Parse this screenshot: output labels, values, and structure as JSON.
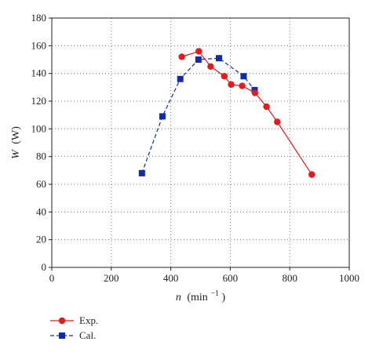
{
  "chart_data": {
    "type": "line",
    "title": "",
    "xlabel_var": "n",
    "xlabel_unit": "(min",
    "xlabel_exp": "−1",
    "xlabel_close": ")",
    "ylabel_var": "W",
    "ylabel_unit": "(W)",
    "xlim": [
      0,
      1000
    ],
    "ylim": [
      0,
      180
    ],
    "xticks": [
      0,
      200,
      400,
      600,
      800,
      1000
    ],
    "yticks": [
      0,
      20,
      40,
      60,
      80,
      100,
      120,
      140,
      160,
      180
    ],
    "grid": true,
    "legend_position": "bottom-left",
    "series": [
      {
        "name": "Exp.",
        "color": "#e41a1c",
        "marker": "circle",
        "line_style": "solid",
        "x": [
          437,
          494,
          534,
          580,
          603,
          640,
          683,
          722,
          758,
          874
        ],
        "y": [
          152,
          156,
          145,
          138,
          132,
          131,
          126,
          116,
          105,
          67
        ]
      },
      {
        "name": "Cal.",
        "color": "#0c2bb0",
        "marker": "square",
        "line_style": "dashed",
        "x": [
          303,
          372,
          432,
          493,
          562,
          645,
          682
        ],
        "y": [
          68,
          109,
          136,
          150,
          151,
          138,
          128
        ]
      }
    ]
  }
}
